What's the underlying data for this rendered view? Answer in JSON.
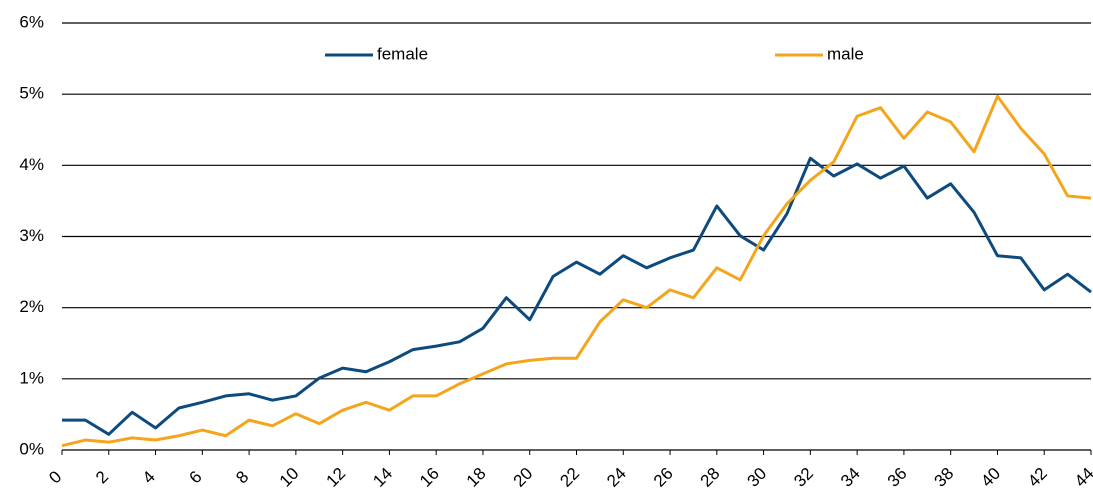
{
  "chart_data": {
    "type": "line",
    "x": [
      0,
      1,
      2,
      3,
      4,
      5,
      6,
      7,
      8,
      9,
      10,
      11,
      12,
      13,
      14,
      15,
      16,
      17,
      18,
      19,
      20,
      21,
      22,
      23,
      24,
      25,
      26,
      27,
      28,
      29,
      30,
      31,
      32,
      33,
      34,
      35,
      36,
      37,
      38,
      39,
      40,
      41,
      42,
      43,
      44
    ],
    "series": [
      {
        "name": "female",
        "color": "#0d4a7d",
        "values": [
          0.42,
          0.42,
          0.22,
          0.53,
          0.31,
          0.59,
          0.67,
          0.76,
          0.79,
          0.7,
          0.76,
          1.01,
          1.15,
          1.1,
          1.24,
          1.41,
          1.46,
          1.52,
          1.71,
          2.14,
          1.83,
          2.44,
          2.64,
          2.47,
          2.73,
          2.56,
          2.7,
          2.81,
          3.43,
          3.01,
          2.81,
          3.32,
          4.1,
          3.85,
          4.02,
          3.82,
          3.99,
          3.54,
          3.74,
          3.34,
          2.73,
          2.7,
          2.25,
          2.47,
          2.22
        ]
      },
      {
        "name": "male",
        "color": "#f4a51c",
        "values": [
          0.06,
          0.14,
          0.11,
          0.17,
          0.14,
          0.2,
          0.28,
          0.2,
          0.42,
          0.34,
          0.51,
          0.37,
          0.56,
          0.67,
          0.56,
          0.76,
          0.76,
          0.93,
          1.07,
          1.21,
          1.26,
          1.29,
          1.29,
          1.8,
          2.11,
          2.0,
          2.25,
          2.14,
          2.56,
          2.39,
          3.01,
          3.46,
          3.79,
          4.05,
          4.69,
          4.81,
          4.38,
          4.75,
          4.61,
          4.19,
          4.97,
          4.52,
          4.16,
          3.57,
          3.54
        ]
      }
    ],
    "xlim": [
      0,
      44
    ],
    "xticks": [
      0,
      2,
      4,
      6,
      8,
      10,
      12,
      14,
      16,
      18,
      20,
      22,
      24,
      26,
      28,
      30,
      32,
      34,
      36,
      38,
      40,
      42,
      44
    ],
    "ylim": [
      0,
      6
    ],
    "yticks": [
      {
        "value": 0,
        "label": "0%"
      },
      {
        "value": 1,
        "label": "1%"
      },
      {
        "value": 2,
        "label": "2%"
      },
      {
        "value": 3,
        "label": "3%"
      },
      {
        "value": 4,
        "label": "4%"
      },
      {
        "value": 5,
        "label": "5%"
      },
      {
        "value": 6,
        "label": "6%"
      }
    ],
    "grid": true,
    "legend": "top"
  }
}
